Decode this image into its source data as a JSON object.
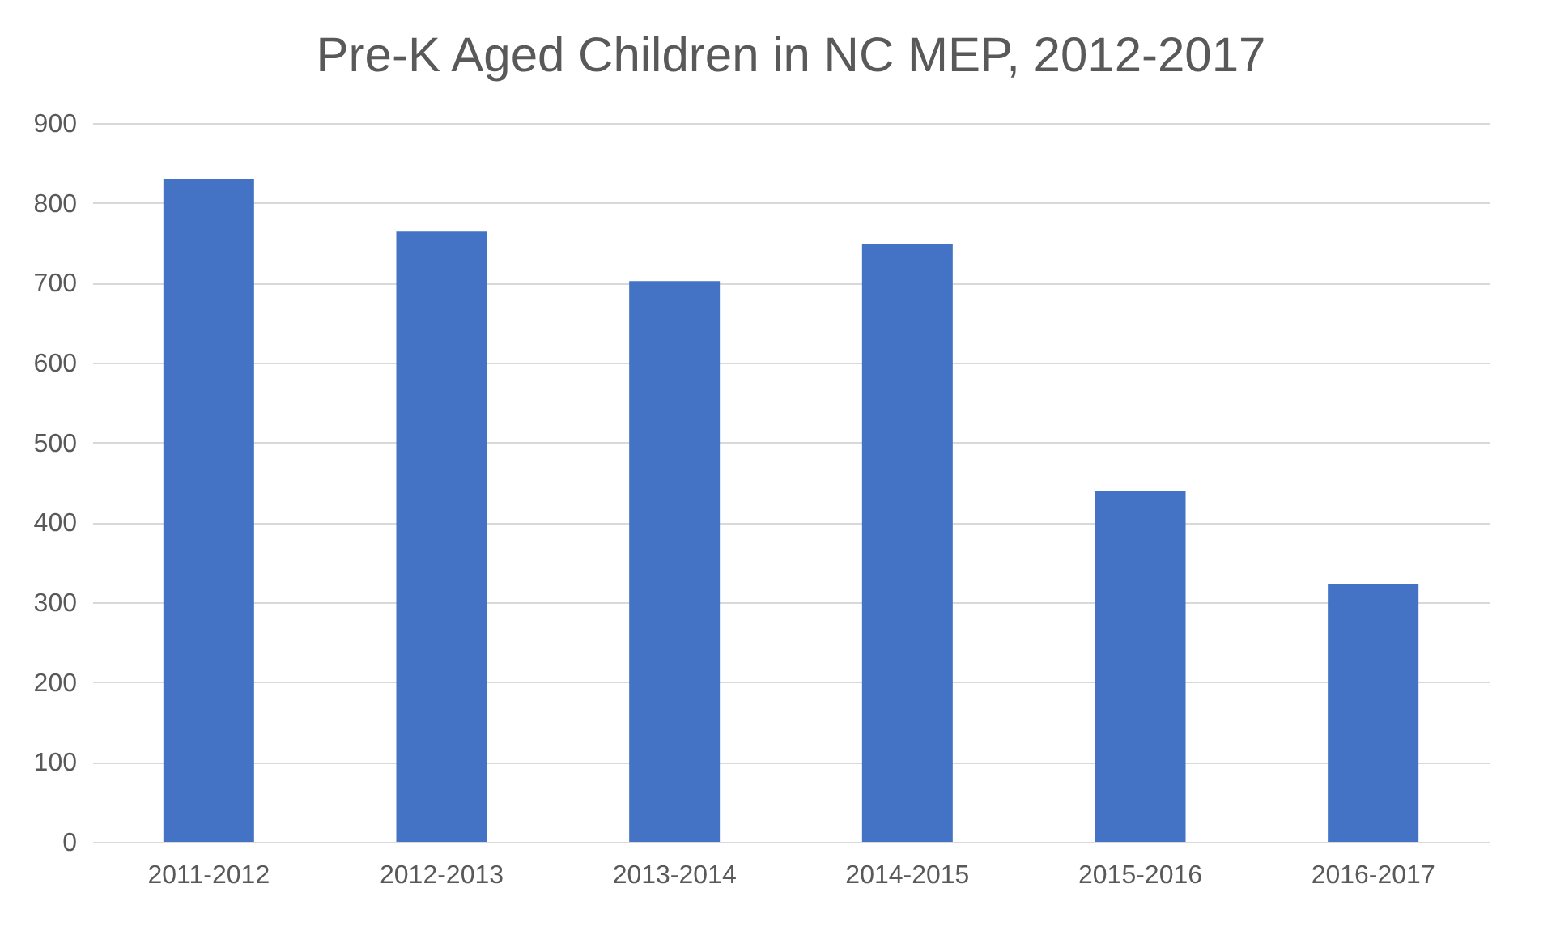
{
  "chart_data": {
    "type": "bar",
    "title": "Pre-K Aged Children in NC MEP, 2012-2017",
    "categories": [
      "2011-2012",
      "2012-2013",
      "2013-2014",
      "2014-2015",
      "2015-2016",
      "2016-2017"
    ],
    "values": [
      830,
      765,
      702,
      748,
      439,
      323
    ],
    "color": "#4472c4",
    "ylim": [
      0,
      900
    ],
    "yticks": [
      0,
      100,
      200,
      300,
      400,
      500,
      600,
      700,
      800,
      900
    ],
    "grid": "y"
  }
}
